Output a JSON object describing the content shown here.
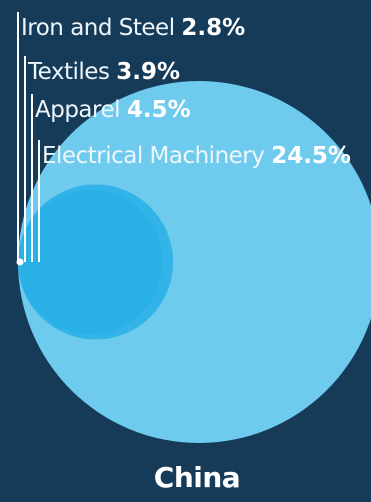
{
  "chart_data": {
    "type": "proportional-circles",
    "country": "China",
    "categories": [
      "Iron and Steel",
      "Textiles",
      "Apparel",
      "Electrical Machinery"
    ],
    "values": [
      2.8,
      3.9,
      4.5,
      24.5
    ],
    "value_labels": [
      "2.8%",
      "3.9%",
      "4.5%",
      "24.5%"
    ],
    "unit": "%",
    "colors": {
      "background": "#163b58",
      "large_circle": "#6fcbee",
      "small_circle": "#28b0e6",
      "leader_line": "#ffffff",
      "text": "#ffffff"
    }
  }
}
